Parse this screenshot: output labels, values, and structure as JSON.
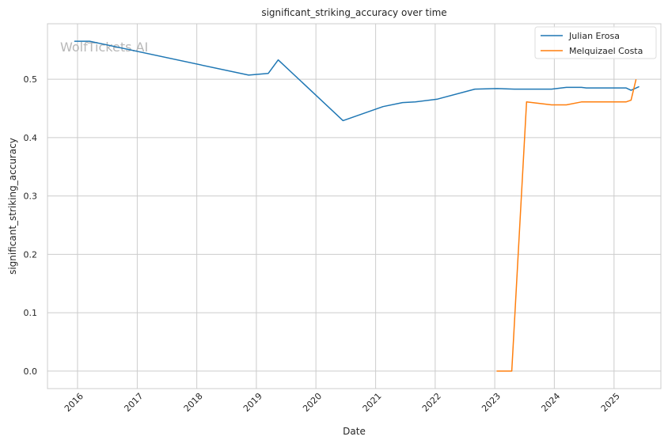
{
  "chart_data": {
    "type": "line",
    "title": "significant_striking_accuracy over time",
    "xlabel": "Date",
    "ylabel": "significant_striking_accuracy",
    "watermark": "WolfTickets.AI",
    "x_ticks": [
      "2016",
      "2017",
      "2018",
      "2019",
      "2020",
      "2021",
      "2022",
      "2023",
      "2024",
      "2025"
    ],
    "y_ticks": [
      "0.0",
      "0.1",
      "0.2",
      "0.3",
      "0.4",
      "0.5"
    ],
    "xlim": [
      "2015-07-01",
      "2025-10-15"
    ],
    "ylim": [
      -0.03,
      0.595
    ],
    "grid": true,
    "legend": "top-right",
    "series": [
      {
        "name": "Julian Erosa",
        "color": "#1f77b4",
        "points": [
          [
            "2015-12-15",
            0.565
          ],
          [
            "2016-03-15",
            0.565
          ],
          [
            "2018-11-15",
            0.507
          ],
          [
            "2019-03-15",
            0.51
          ],
          [
            "2019-05-15",
            0.533
          ],
          [
            "2020-06-15",
            0.429
          ],
          [
            "2021-02-15",
            0.453
          ],
          [
            "2021-06-15",
            0.46
          ],
          [
            "2021-09-01",
            0.461
          ],
          [
            "2022-01-15",
            0.466
          ],
          [
            "2022-09-01",
            0.483
          ],
          [
            "2023-01-15",
            0.484
          ],
          [
            "2023-05-01",
            0.483
          ],
          [
            "2023-12-15",
            0.483
          ],
          [
            "2024-03-15",
            0.486
          ],
          [
            "2024-06-15",
            0.486
          ],
          [
            "2024-07-15",
            0.485
          ],
          [
            "2025-03-15",
            0.485
          ],
          [
            "2025-04-15",
            0.481
          ],
          [
            "2025-06-01",
            0.487
          ]
        ]
      },
      {
        "name": "Melquizael Costa",
        "color": "#ff7f0e",
        "points": [
          [
            "2023-01-15",
            0.0
          ],
          [
            "2023-04-15",
            0.0
          ],
          [
            "2023-07-15",
            0.461
          ],
          [
            "2023-12-15",
            0.456
          ],
          [
            "2024-03-15",
            0.456
          ],
          [
            "2024-06-15",
            0.461
          ],
          [
            "2025-03-15",
            0.461
          ],
          [
            "2025-04-15",
            0.464
          ],
          [
            "2025-05-15",
            0.499
          ]
        ]
      }
    ]
  }
}
